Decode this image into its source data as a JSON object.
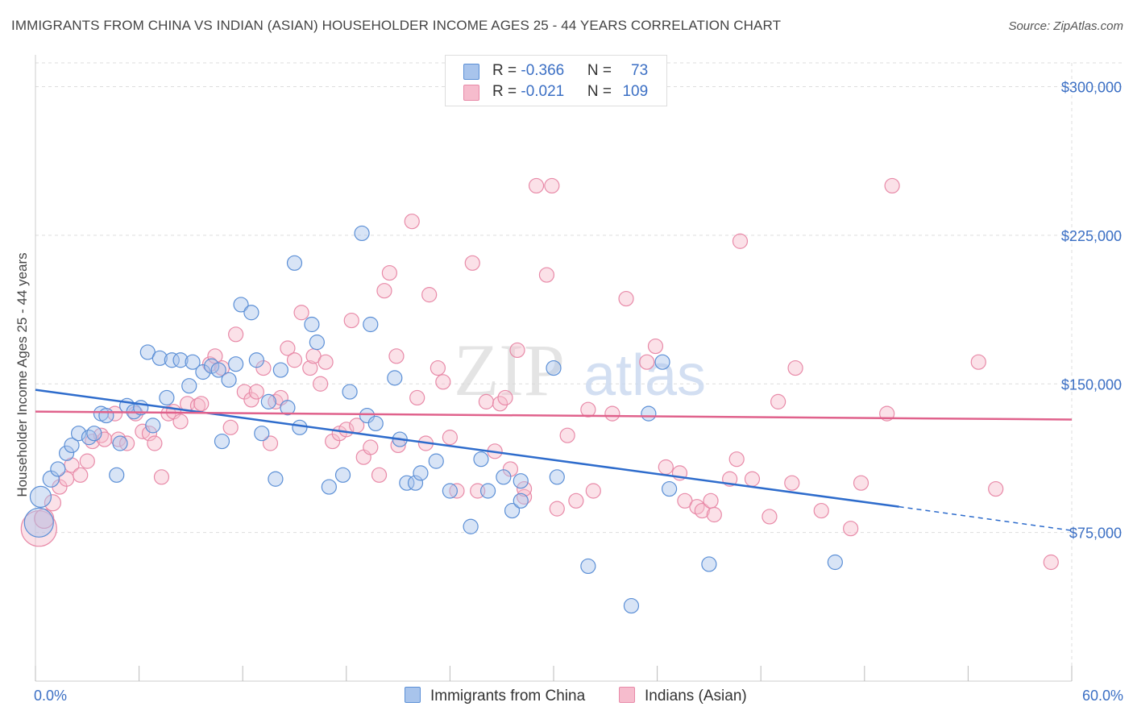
{
  "title": "IMMIGRANTS FROM CHINA VS INDIAN (ASIAN) HOUSEHOLDER INCOME AGES 25 - 44 YEARS CORRELATION CHART",
  "source": "Source: ZipAtlas.com",
  "watermark": {
    "zip": "ZIP",
    "atlas": "atlas"
  },
  "legend": {
    "china": {
      "r_label": "R = ",
      "r_value": "-0.366",
      "n_label": "N = ",
      "n_value": "73"
    },
    "indian": {
      "r_label": "R = ",
      "r_value": "-0.021",
      "n_label": "N = ",
      "n_value": "109"
    }
  },
  "colors": {
    "china_fill": "#a8c4ec",
    "china_stroke": "#5b8fd6",
    "china_line": "#2e6ccc",
    "indian_fill": "#f6bccd",
    "indian_stroke": "#e88aa8",
    "indian_line": "#e0628c",
    "axis_label": "#3b6fc4",
    "grid": "#dddddd"
  },
  "chart_data": {
    "type": "scatter",
    "title": "IMMIGRANTS FROM CHINA VS INDIAN (ASIAN) HOUSEHOLDER INCOME AGES 25 - 44 YEARS CORRELATION CHART",
    "xlabel": "",
    "ylabel": "Householder Income Ages 25 - 44 years",
    "xlim": [
      0,
      60
    ],
    "ylim": [
      0,
      312000
    ],
    "x_tick_labels": [
      "0.0%",
      "60.0%"
    ],
    "y_ticks": [
      75000,
      150000,
      225000,
      300000
    ],
    "y_tick_labels": [
      "$75,000",
      "$150,000",
      "$225,000",
      "$300,000"
    ],
    "grid": true,
    "legend_position": "top-center",
    "series": [
      {
        "name": "Immigrants from China",
        "trend": {
          "x0": 0,
          "y0": 147000,
          "x1": 50,
          "y1": 88000,
          "dashed_to_x": 60,
          "dashed_to_y": 76000
        },
        "points": [
          [
            0.2,
            80000,
            18
          ],
          [
            0.3,
            93000,
            13
          ],
          [
            0.9,
            102000,
            10
          ],
          [
            1.3,
            107000,
            9
          ],
          [
            1.8,
            115000,
            9
          ],
          [
            2.1,
            119000,
            9
          ],
          [
            2.5,
            125000,
            9
          ],
          [
            3.1,
            123000,
            9
          ],
          [
            3.4,
            125000,
            9
          ],
          [
            3.8,
            135000,
            9
          ],
          [
            4.1,
            134000,
            9
          ],
          [
            4.7,
            104000,
            9
          ],
          [
            4.9,
            120000,
            9
          ],
          [
            5.3,
            139000,
            9
          ],
          [
            5.7,
            136000,
            9
          ],
          [
            6.1,
            138000,
            9
          ],
          [
            6.5,
            166000,
            9
          ],
          [
            6.8,
            129000,
            9
          ],
          [
            7.2,
            163000,
            9
          ],
          [
            7.6,
            143000,
            9
          ],
          [
            7.9,
            162000,
            9
          ],
          [
            8.4,
            162000,
            9
          ],
          [
            8.9,
            149000,
            9
          ],
          [
            9.1,
            161000,
            9
          ],
          [
            9.7,
            156000,
            9
          ],
          [
            10.2,
            159000,
            9
          ],
          [
            10.6,
            157000,
            9
          ],
          [
            10.8,
            121000,
            9
          ],
          [
            11.2,
            152000,
            9
          ],
          [
            11.6,
            160000,
            9
          ],
          [
            11.9,
            190000,
            9
          ],
          [
            12.5,
            186000,
            9
          ],
          [
            12.8,
            162000,
            9
          ],
          [
            13.1,
            125000,
            9
          ],
          [
            13.5,
            141000,
            9
          ],
          [
            13.9,
            102000,
            9
          ],
          [
            14.2,
            157000,
            9
          ],
          [
            14.6,
            138000,
            9
          ],
          [
            15.0,
            211000,
            9
          ],
          [
            15.3,
            128000,
            9
          ],
          [
            16.0,
            180000,
            9
          ],
          [
            16.3,
            171000,
            9
          ],
          [
            17.0,
            98000,
            9
          ],
          [
            17.8,
            104000,
            9
          ],
          [
            18.2,
            146000,
            9
          ],
          [
            18.9,
            226000,
            9
          ],
          [
            19.4,
            180000,
            9
          ],
          [
            19.2,
            134000,
            9
          ],
          [
            19.7,
            130000,
            9
          ],
          [
            20.8,
            153000,
            9
          ],
          [
            21.1,
            122000,
            9
          ],
          [
            21.5,
            100000,
            9
          ],
          [
            22.0,
            100000,
            9
          ],
          [
            22.3,
            105000,
            9
          ],
          [
            23.2,
            111000,
            9
          ],
          [
            24.0,
            96000,
            9
          ],
          [
            25.2,
            78000,
            9
          ],
          [
            25.8,
            112000,
            9
          ],
          [
            26.2,
            96000,
            9
          ],
          [
            27.1,
            103000,
            9
          ],
          [
            27.6,
            86000,
            9
          ],
          [
            28.1,
            101000,
            9
          ],
          [
            28.1,
            91000,
            9
          ],
          [
            30.0,
            158000,
            9
          ],
          [
            30.2,
            103000,
            9
          ],
          [
            32.0,
            58000,
            9
          ],
          [
            34.5,
            38000,
            9
          ],
          [
            35.5,
            135000,
            9
          ],
          [
            36.3,
            161000,
            9
          ],
          [
            36.7,
            97000,
            9
          ],
          [
            39.0,
            59000,
            9
          ],
          [
            46.3,
            60000,
            9
          ]
        ]
      },
      {
        "name": "Indians (Asian)",
        "trend": {
          "x0": 0,
          "y0": 136000,
          "x1": 60,
          "y1": 132000
        },
        "points": [
          [
            0.2,
            77000,
            22
          ],
          [
            0.5,
            82000,
            12
          ],
          [
            1.0,
            90000,
            10
          ],
          [
            1.4,
            98000,
            9
          ],
          [
            1.8,
            102000,
            9
          ],
          [
            2.1,
            109000,
            9
          ],
          [
            2.6,
            104000,
            9
          ],
          [
            3.0,
            111000,
            9
          ],
          [
            3.3,
            121000,
            9
          ],
          [
            3.8,
            124000,
            9
          ],
          [
            4.0,
            122000,
            9
          ],
          [
            4.6,
            135000,
            9
          ],
          [
            4.8,
            122000,
            9
          ],
          [
            5.3,
            120000,
            9
          ],
          [
            5.8,
            135000,
            9
          ],
          [
            6.2,
            126000,
            9
          ],
          [
            6.6,
            125000,
            9
          ],
          [
            6.9,
            120000,
            9
          ],
          [
            7.3,
            103000,
            9
          ],
          [
            7.7,
            135000,
            9
          ],
          [
            8.0,
            136000,
            9
          ],
          [
            8.4,
            131000,
            9
          ],
          [
            8.8,
            140000,
            9
          ],
          [
            9.4,
            139000,
            9
          ],
          [
            9.6,
            140000,
            9
          ],
          [
            10.1,
            160000,
            9
          ],
          [
            10.4,
            164000,
            9
          ],
          [
            10.8,
            158000,
            9
          ],
          [
            11.3,
            128000,
            9
          ],
          [
            11.6,
            175000,
            9
          ],
          [
            12.1,
            146000,
            9
          ],
          [
            12.5,
            142000,
            9
          ],
          [
            12.8,
            146000,
            9
          ],
          [
            13.2,
            158000,
            9
          ],
          [
            13.6,
            120000,
            9
          ],
          [
            13.9,
            141000,
            9
          ],
          [
            14.2,
            143000,
            9
          ],
          [
            14.6,
            168000,
            9
          ],
          [
            15.0,
            162000,
            9
          ],
          [
            15.4,
            186000,
            9
          ],
          [
            15.9,
            158000,
            9
          ],
          [
            16.1,
            164000,
            9
          ],
          [
            16.5,
            150000,
            9
          ],
          [
            16.8,
            161000,
            9
          ],
          [
            17.2,
            121000,
            9
          ],
          [
            17.6,
            125000,
            9
          ],
          [
            18.0,
            127000,
            9
          ],
          [
            18.3,
            182000,
            9
          ],
          [
            18.6,
            129000,
            9
          ],
          [
            19.0,
            113000,
            9
          ],
          [
            19.4,
            118000,
            9
          ],
          [
            19.9,
            104000,
            9
          ],
          [
            20.2,
            197000,
            9
          ],
          [
            20.5,
            206000,
            9
          ],
          [
            20.9,
            164000,
            9
          ],
          [
            21.0,
            119000,
            9
          ],
          [
            21.8,
            232000,
            9
          ],
          [
            22.1,
            143000,
            9
          ],
          [
            22.6,
            120000,
            9
          ],
          [
            22.8,
            195000,
            9
          ],
          [
            23.3,
            158000,
            9
          ],
          [
            23.6,
            151000,
            9
          ],
          [
            24.0,
            123000,
            9
          ],
          [
            24.4,
            96000,
            9
          ],
          [
            25.3,
            211000,
            9
          ],
          [
            25.6,
            96000,
            9
          ],
          [
            26.1,
            141000,
            9
          ],
          [
            26.6,
            116000,
            9
          ],
          [
            26.9,
            140000,
            9
          ],
          [
            27.2,
            143000,
            9
          ],
          [
            27.5,
            107000,
            9
          ],
          [
            27.9,
            167000,
            9
          ],
          [
            28.3,
            93000,
            9
          ],
          [
            28.3,
            97000,
            9
          ],
          [
            29.0,
            250000,
            9
          ],
          [
            29.6,
            205000,
            9
          ],
          [
            29.9,
            250000,
            9
          ],
          [
            30.2,
            87000,
            9
          ],
          [
            30.8,
            124000,
            9
          ],
          [
            31.3,
            91000,
            9
          ],
          [
            32.0,
            137000,
            9
          ],
          [
            32.3,
            96000,
            9
          ],
          [
            33.4,
            135000,
            9
          ],
          [
            34.2,
            193000,
            9
          ],
          [
            35.4,
            161000,
            9
          ],
          [
            35.9,
            169000,
            9
          ],
          [
            36.5,
            108000,
            9
          ],
          [
            37.3,
            105000,
            9
          ],
          [
            37.6,
            91000,
            9
          ],
          [
            38.3,
            88000,
            9
          ],
          [
            38.6,
            86000,
            9
          ],
          [
            39.1,
            91000,
            9
          ],
          [
            39.3,
            84000,
            9
          ],
          [
            40.2,
            102000,
            9
          ],
          [
            40.6,
            112000,
            9
          ],
          [
            40.8,
            222000,
            9
          ],
          [
            41.5,
            102000,
            9
          ],
          [
            42.5,
            83000,
            9
          ],
          [
            43.0,
            141000,
            9
          ],
          [
            43.8,
            100000,
            9
          ],
          [
            44.0,
            158000,
            9
          ],
          [
            45.5,
            86000,
            9
          ],
          [
            47.2,
            77000,
            9
          ],
          [
            47.8,
            100000,
            9
          ],
          [
            49.3,
            135000,
            9
          ],
          [
            49.6,
            250000,
            9
          ],
          [
            54.6,
            161000,
            9
          ],
          [
            55.6,
            97000,
            9
          ],
          [
            58.8,
            60000,
            9
          ]
        ]
      }
    ]
  }
}
